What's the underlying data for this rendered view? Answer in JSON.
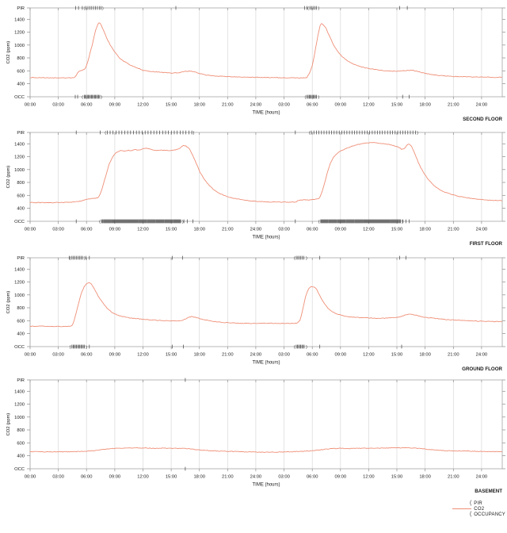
{
  "figure_title": "",
  "colors": {
    "co2_line": "#ef8f77",
    "marker": "#3f3f3f",
    "grid": "#d8d8d8",
    "frame": "#a6a6a6",
    "tick": "#8c8c8c",
    "text": "#1a1a1a"
  },
  "time_axis": {
    "label": "TIME (hours)",
    "tick_hours": [
      0,
      3,
      6,
      9,
      12,
      15,
      18,
      21,
      24,
      27,
      30,
      33,
      36,
      39,
      42,
      45,
      48
    ],
    "tick_labels": [
      "00:00",
      "03:00",
      "06:00",
      "09:00",
      "12:00",
      "15:00",
      "18:00",
      "21:00",
      "24:00",
      "03:00",
      "06:00",
      "09:00",
      "12:00",
      "15:00",
      "18:00",
      "21:00",
      "24:00"
    ],
    "hour_min": 0,
    "hour_max": 50.2
  },
  "y_axis": {
    "label": "CO2 (ppm)",
    "ticks": [
      400,
      600,
      800,
      1000,
      1200,
      1400
    ],
    "top_row_label": "PIR",
    "bottom_row_label": "OCC",
    "ppm_min": 400,
    "ppm_max": 1400
  },
  "legend": {
    "items": [
      {
        "label": "PIR",
        "marker_glyph": "paren"
      },
      {
        "label": "CO2",
        "marker_glyph": "line"
      },
      {
        "label": "OCCUPANCY",
        "marker_glyph": "paren"
      }
    ]
  },
  "chart_data": [
    {
      "type": "line",
      "floor_label": "SECOND FLOOR",
      "co2_keypoints": [
        [
          0,
          495
        ],
        [
          2,
          492
        ],
        [
          4,
          490
        ],
        [
          4.7,
          492
        ],
        [
          4.9,
          530
        ],
        [
          5.1,
          575
        ],
        [
          5.3,
          600
        ],
        [
          5.6,
          610
        ],
        [
          5.9,
          640
        ],
        [
          6.2,
          780
        ],
        [
          6.6,
          1000
        ],
        [
          7.0,
          1250
        ],
        [
          7.3,
          1350
        ],
        [
          7.5,
          1330
        ],
        [
          7.8,
          1230
        ],
        [
          8.2,
          1090
        ],
        [
          8.6,
          980
        ],
        [
          9.0,
          890
        ],
        [
          9.5,
          800
        ],
        [
          10,
          745
        ],
        [
          10.5,
          700
        ],
        [
          11,
          665
        ],
        [
          11.5,
          640
        ],
        [
          12,
          605
        ],
        [
          13,
          588
        ],
        [
          14,
          575
        ],
        [
          15,
          565
        ],
        [
          15.8,
          572
        ],
        [
          16.5,
          590
        ],
        [
          17,
          595
        ],
        [
          17.5,
          585
        ],
        [
          18,
          560
        ],
        [
          18.7,
          535
        ],
        [
          19.5,
          520
        ],
        [
          20.5,
          512
        ],
        [
          22,
          505
        ],
        [
          23.5,
          500
        ],
        [
          25,
          496
        ],
        [
          27,
          492
        ],
        [
          29,
          490
        ],
        [
          29.4,
          495
        ],
        [
          29.7,
          560
        ],
        [
          30.0,
          680
        ],
        [
          30.3,
          900
        ],
        [
          30.6,
          1150
        ],
        [
          30.9,
          1335
        ],
        [
          31.1,
          1325
        ],
        [
          31.4,
          1280
        ],
        [
          31.8,
          1150
        ],
        [
          32.2,
          1020
        ],
        [
          32.6,
          920
        ],
        [
          33,
          850
        ],
        [
          33.5,
          780
        ],
        [
          34,
          730
        ],
        [
          34.5,
          695
        ],
        [
          35,
          670
        ],
        [
          35.5,
          650
        ],
        [
          36,
          635
        ],
        [
          36.7,
          618
        ],
        [
          37.5,
          605
        ],
        [
          38.5,
          595
        ],
        [
          39.3,
          595
        ],
        [
          40,
          605
        ],
        [
          40.6,
          608
        ],
        [
          41.2,
          590
        ],
        [
          42,
          560
        ],
        [
          42.8,
          538
        ],
        [
          43.6,
          525
        ],
        [
          44.5,
          515
        ],
        [
          46,
          508
        ],
        [
          47.5,
          503
        ],
        [
          49,
          500
        ],
        [
          50.2,
          498
        ]
      ],
      "pir_ticks": [
        4.85,
        5.15,
        5.55,
        15.5,
        29.2,
        29.45,
        39.3,
        40.1
      ],
      "pir_bands": [
        [
          5.95,
          7.55,
          0.2
        ],
        [
          29.75,
          30.5,
          0.17
        ]
      ],
      "occ_ticks": [
        4.8,
        5.05,
        39.6,
        40.3
      ],
      "occ_bands": [
        [
          5.75,
          7.4,
          0.11
        ],
        [
          29.45,
          30.5,
          0.11
        ]
      ]
    },
    {
      "type": "line",
      "floor_label": "FIRST FLOOR",
      "co2_keypoints": [
        [
          0,
          487
        ],
        [
          1,
          488
        ],
        [
          2,
          486
        ],
        [
          3,
          488
        ],
        [
          4,
          492
        ],
        [
          4.8,
          498
        ],
        [
          5.5,
          515
        ],
        [
          6,
          535
        ],
        [
          6.4,
          550
        ],
        [
          6.8,
          555
        ],
        [
          7.2,
          560
        ],
        [
          7.4,
          600
        ],
        [
          7.7,
          720
        ],
        [
          8.0,
          880
        ],
        [
          8.4,
          1080
        ],
        [
          8.8,
          1200
        ],
        [
          9.2,
          1270
        ],
        [
          9.6,
          1295
        ],
        [
          10,
          1285
        ],
        [
          10.4,
          1300
        ],
        [
          10.8,
          1295
        ],
        [
          11.2,
          1310
        ],
        [
          11.6,
          1300
        ],
        [
          12,
          1325
        ],
        [
          12.4,
          1330
        ],
        [
          12.8,
          1315
        ],
        [
          13.2,
          1300
        ],
        [
          13.6,
          1295
        ],
        [
          14,
          1302
        ],
        [
          14.4,
          1298
        ],
        [
          14.8,
          1295
        ],
        [
          15.2,
          1300
        ],
        [
          15.6,
          1310
        ],
        [
          16,
          1340
        ],
        [
          16.3,
          1375
        ],
        [
          16.6,
          1365
        ],
        [
          16.9,
          1330
        ],
        [
          17.3,
          1220
        ],
        [
          17.7,
          1080
        ],
        [
          18.1,
          950
        ],
        [
          18.5,
          850
        ],
        [
          19,
          760
        ],
        [
          19.5,
          690
        ],
        [
          20,
          640
        ],
        [
          20.7,
          595
        ],
        [
          21.5,
          560
        ],
        [
          22.5,
          530
        ],
        [
          23.5,
          512
        ],
        [
          24.5,
          502
        ],
        [
          25.5,
          498
        ],
        [
          26.5,
          495
        ],
        [
          27.5,
          494
        ],
        [
          28.3,
          495
        ],
        [
          28.5,
          525
        ],
        [
          29,
          528
        ],
        [
          29.7,
          530
        ],
        [
          30.4,
          538
        ],
        [
          30.8,
          560
        ],
        [
          31.0,
          640
        ],
        [
          31.3,
          780
        ],
        [
          31.6,
          950
        ],
        [
          31.9,
          1090
        ],
        [
          32.3,
          1200
        ],
        [
          32.8,
          1270
        ],
        [
          33.3,
          1310
        ],
        [
          33.9,
          1345
        ],
        [
          34.5,
          1375
        ],
        [
          35.1,
          1395
        ],
        [
          35.7,
          1410
        ],
        [
          36.3,
          1418
        ],
        [
          36.9,
          1415
        ],
        [
          37.5,
          1405
        ],
        [
          38.1,
          1390
        ],
        [
          38.7,
          1370
        ],
        [
          39.2,
          1345
        ],
        [
          39.5,
          1315
        ],
        [
          39.8,
          1320
        ],
        [
          40.1,
          1390
        ],
        [
          40.3,
          1400
        ],
        [
          40.6,
          1350
        ],
        [
          40.9,
          1250
        ],
        [
          41.3,
          1100
        ],
        [
          41.8,
          960
        ],
        [
          42.3,
          850
        ],
        [
          42.8,
          770
        ],
        [
          43.4,
          700
        ],
        [
          44,
          655
        ],
        [
          44.8,
          615
        ],
        [
          45.6,
          585
        ],
        [
          46.5,
          560
        ],
        [
          47.5,
          540
        ],
        [
          48.5,
          528
        ],
        [
          49.5,
          520
        ],
        [
          50.2,
          518
        ]
      ],
      "pir_ticks": [
        4.9,
        7.45,
        28.2
      ],
      "pir_bands": [
        [
          8.2,
          17.2,
          0.31
        ],
        [
          29.9,
          41.0,
          0.27
        ]
      ],
      "occ_ticks": [
        4.9,
        16.35,
        16.7,
        17.3,
        28.2,
        39.65,
        39.95,
        40.3
      ],
      "occ_bands": [
        [
          7.6,
          16.05,
          0.085
        ],
        [
          30.9,
          39.4,
          0.085
        ]
      ]
    },
    {
      "type": "line",
      "floor_label": "GROUND FLOOR",
      "co2_keypoints": [
        [
          0,
          512
        ],
        [
          1,
          515
        ],
        [
          2,
          512
        ],
        [
          3,
          510
        ],
        [
          4,
          510
        ],
        [
          4.4,
          515
        ],
        [
          4.6,
          560
        ],
        [
          4.9,
          720
        ],
        [
          5.2,
          900
        ],
        [
          5.5,
          1050
        ],
        [
          5.8,
          1140
        ],
        [
          6.1,
          1185
        ],
        [
          6.3,
          1190
        ],
        [
          6.5,
          1170
        ],
        [
          6.8,
          1100
        ],
        [
          7.1,
          1020
        ],
        [
          7.4,
          940
        ],
        [
          7.8,
          860
        ],
        [
          8.2,
          790
        ],
        [
          8.6,
          740
        ],
        [
          9.0,
          705
        ],
        [
          9.5,
          675
        ],
        [
          10,
          658
        ],
        [
          10.7,
          640
        ],
        [
          11.5,
          628
        ],
        [
          12.5,
          615
        ],
        [
          13.5,
          605
        ],
        [
          14.5,
          598
        ],
        [
          15.5,
          595
        ],
        [
          16.3,
          608
        ],
        [
          16.8,
          650
        ],
        [
          17.2,
          662
        ],
        [
          17.6,
          650
        ],
        [
          18.2,
          625
        ],
        [
          19,
          600
        ],
        [
          19.8,
          582
        ],
        [
          20.8,
          570
        ],
        [
          22,
          560
        ],
        [
          23,
          556
        ],
        [
          24,
          558
        ],
        [
          25,
          560
        ],
        [
          26,
          558
        ],
        [
          27,
          556
        ],
        [
          28,
          558
        ],
        [
          28.4,
          562
        ],
        [
          28.7,
          600
        ],
        [
          29.0,
          780
        ],
        [
          29.3,
          980
        ],
        [
          29.6,
          1090
        ],
        [
          29.8,
          1125
        ],
        [
          30.1,
          1128
        ],
        [
          30.4,
          1100
        ],
        [
          30.7,
          1020
        ],
        [
          31.0,
          930
        ],
        [
          31.4,
          840
        ],
        [
          31.8,
          775
        ],
        [
          32.3,
          725
        ],
        [
          32.8,
          695
        ],
        [
          33.4,
          670
        ],
        [
          34,
          658
        ],
        [
          35,
          648
        ],
        [
          36,
          642
        ],
        [
          37,
          638
        ],
        [
          38,
          640
        ],
        [
          38.8,
          648
        ],
        [
          39.5,
          668
        ],
        [
          40.0,
          692
        ],
        [
          40.4,
          700
        ],
        [
          40.9,
          688
        ],
        [
          41.5,
          665
        ],
        [
          42.2,
          648
        ],
        [
          43,
          635
        ],
        [
          44,
          620
        ],
        [
          45,
          610
        ],
        [
          46,
          602
        ],
        [
          47,
          596
        ],
        [
          48,
          590
        ],
        [
          49,
          586
        ],
        [
          50.2,
          584
        ]
      ],
      "pir_ticks": [
        4.15,
        5.95,
        6.3,
        15.1,
        16.2,
        30.8,
        39.3,
        39.95
      ],
      "pir_bands": [
        [
          4.45,
          5.6,
          0.16
        ],
        [
          28.3,
          29.2,
          0.16
        ]
      ],
      "occ_ticks": [
        6.3,
        15.1,
        16.3,
        30.8,
        39.5
      ],
      "occ_bands": [
        [
          4.45,
          5.8,
          0.12
        ],
        [
          28.3,
          29.2,
          0.12
        ]
      ]
    },
    {
      "type": "line",
      "floor_label": "BASEMENT",
      "co2_keypoints": [
        [
          0,
          463
        ],
        [
          1,
          461
        ],
        [
          2,
          458
        ],
        [
          3,
          462
        ],
        [
          4,
          461
        ],
        [
          5,
          463
        ],
        [
          6,
          467
        ],
        [
          7,
          482
        ],
        [
          8,
          502
        ],
        [
          9,
          513
        ],
        [
          10,
          518
        ],
        [
          11,
          521
        ],
        [
          12,
          519
        ],
        [
          13,
          516
        ],
        [
          14,
          516
        ],
        [
          15,
          513
        ],
        [
          16,
          515
        ],
        [
          16.8,
          508
        ],
        [
          17.6,
          495
        ],
        [
          18.4,
          484
        ],
        [
          19.2,
          477
        ],
        [
          20,
          472
        ],
        [
          21,
          468
        ],
        [
          22,
          463
        ],
        [
          23,
          460
        ],
        [
          24,
          456
        ],
        [
          25,
          453
        ],
        [
          26,
          455
        ],
        [
          27,
          458
        ],
        [
          28,
          461
        ],
        [
          29,
          467
        ],
        [
          30,
          477
        ],
        [
          31,
          494
        ],
        [
          32,
          508
        ],
        [
          33,
          514
        ],
        [
          34,
          511
        ],
        [
          35,
          513
        ],
        [
          36,
          516
        ],
        [
          37,
          516
        ],
        [
          38,
          519
        ],
        [
          39,
          521
        ],
        [
          40,
          523
        ],
        [
          40.8,
          518
        ],
        [
          41.6,
          508
        ],
        [
          42.4,
          496
        ],
        [
          43.2,
          486
        ],
        [
          44,
          479
        ],
        [
          45,
          475
        ],
        [
          46,
          472
        ],
        [
          47,
          469
        ],
        [
          48,
          466
        ],
        [
          49,
          464
        ],
        [
          50.2,
          462
        ]
      ],
      "pir_ticks": [
        16.5
      ],
      "pir_bands": [],
      "occ_ticks": [
        16.5
      ],
      "occ_bands": []
    }
  ]
}
